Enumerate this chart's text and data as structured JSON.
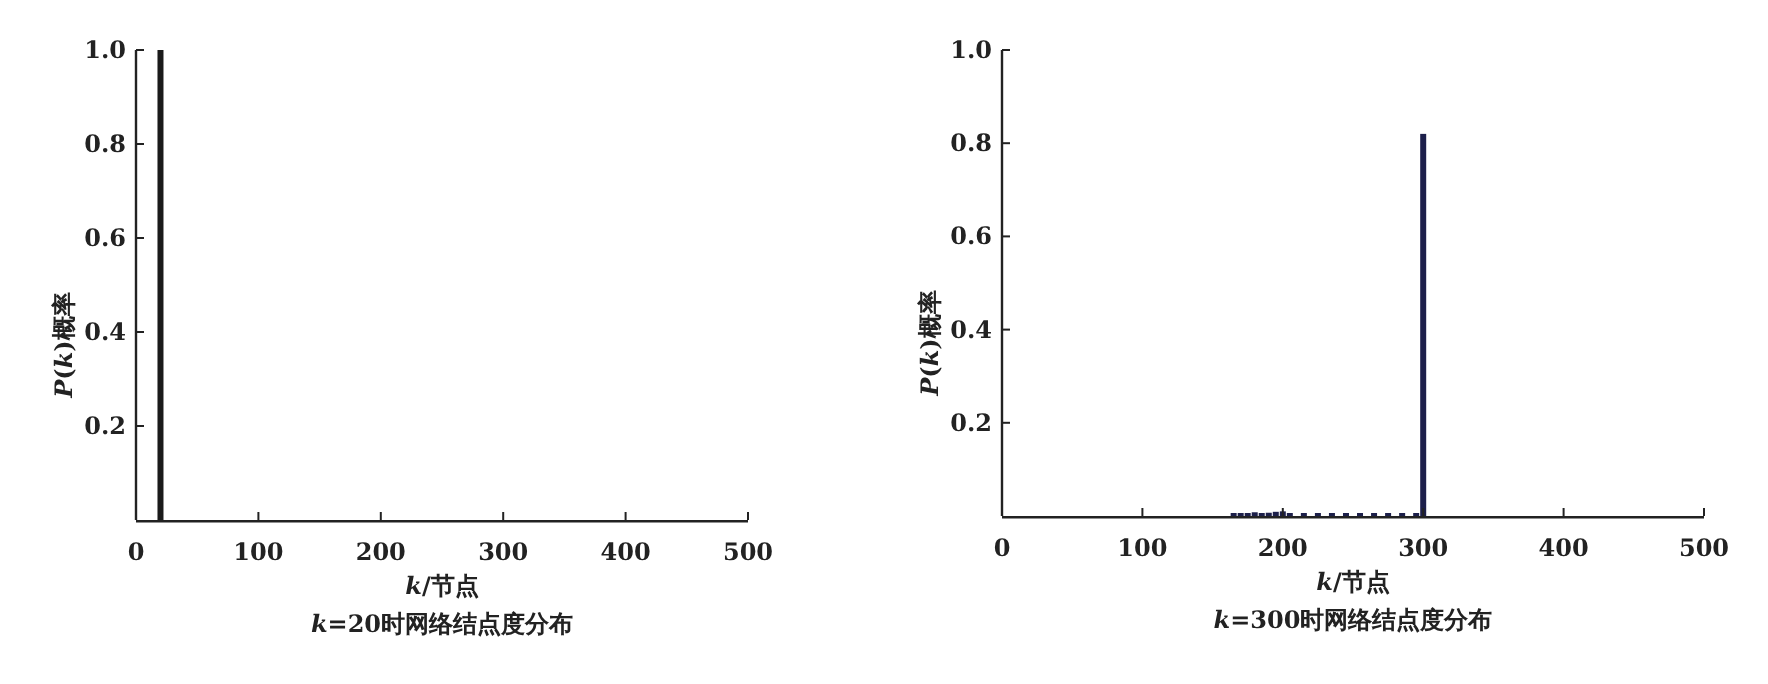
{
  "chart_data": [
    {
      "type": "bar",
      "title": "*k*=20时网络结点度分布",
      "xlabel": "*k*/节点",
      "ylabel": "*P*(*k*)概率",
      "x": [
        20
      ],
      "values": [
        1.0
      ],
      "color": "#1a1a1a",
      "xlim": [
        0,
        500
      ],
      "ylim": [
        0,
        1
      ],
      "xticks": [
        0,
        100,
        200,
        300,
        400,
        500
      ],
      "yticks": [
        {
          "value": 0.2,
          "label": "0.2"
        },
        {
          "value": 0.4,
          "label": "0.4"
        },
        {
          "value": 0.6,
          "label": "0.6"
        },
        {
          "value": 0.8,
          "label": "0.8"
        },
        {
          "value": 1,
          "label": "1.0"
        }
      ],
      "grid": false
    },
    {
      "type": "bar",
      "title": "*k*=300时网络结点度分布",
      "xlabel": "*k*/节点",
      "ylabel": "*P*(*k*)概率",
      "x": [
        165,
        170,
        175,
        180,
        185,
        190,
        195,
        200,
        205,
        215,
        225,
        235,
        245,
        255,
        265,
        275,
        285,
        295,
        300
      ],
      "values": [
        0.004,
        0.005,
        0.006,
        0.008,
        0.006,
        0.007,
        0.009,
        0.01,
        0.006,
        0.005,
        0.006,
        0.005,
        0.006,
        0.006,
        0.005,
        0.006,
        0.005,
        0.006,
        0.82
      ],
      "color": "#1c1f4a",
      "xlim": [
        0,
        500
      ],
      "ylim": [
        0,
        1
      ],
      "xticks": [
        0,
        100,
        200,
        300,
        400,
        500
      ],
      "yticks": [
        {
          "value": 0.2,
          "label": "0.2"
        },
        {
          "value": 0.4,
          "label": "0.4"
        },
        {
          "value": 0.6,
          "label": "0.6"
        },
        {
          "value": 0.8,
          "label": "0.8"
        },
        {
          "value": 1,
          "label": "1.0"
        }
      ],
      "grid": false
    }
  ]
}
